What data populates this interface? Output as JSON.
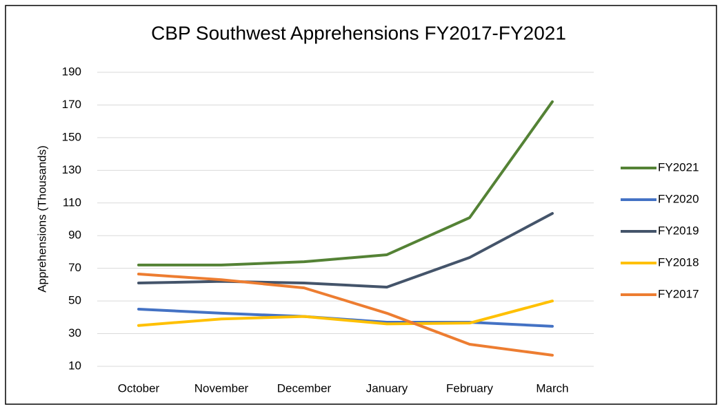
{
  "chart_data": {
    "type": "line",
    "title": "CBP Southwest Apprehensions FY2017-FY2021",
    "y_label": "Apprehensions (Thousands)",
    "categories": [
      "October",
      "November",
      "December",
      "January",
      "February",
      "March"
    ],
    "series": [
      {
        "name": "FY2021",
        "color": "#548235",
        "values": [
          72,
          72,
          74,
          78.3,
          101,
          172
        ]
      },
      {
        "name": "FY2020",
        "color": "#4472c4",
        "values": [
          45,
          42.5,
          40.5,
          37,
          37,
          34.5
        ]
      },
      {
        "name": "FY2019",
        "color": "#44546a",
        "values": [
          61,
          62,
          61,
          58.5,
          76.6,
          103.6
        ]
      },
      {
        "name": "FY2018",
        "color": "#ffc000",
        "values": [
          35,
          39,
          40.5,
          36,
          36.5,
          50
        ]
      },
      {
        "name": "FY2017",
        "color": "#ed7d31",
        "values": [
          66.5,
          63,
          58,
          42.5,
          23.5,
          16.8
        ]
      }
    ],
    "ylim": [
      10,
      190
    ],
    "yticks": [
      10,
      30,
      50,
      70,
      90,
      110,
      130,
      150,
      170,
      190
    ],
    "grid": true,
    "legend": "right"
  }
}
